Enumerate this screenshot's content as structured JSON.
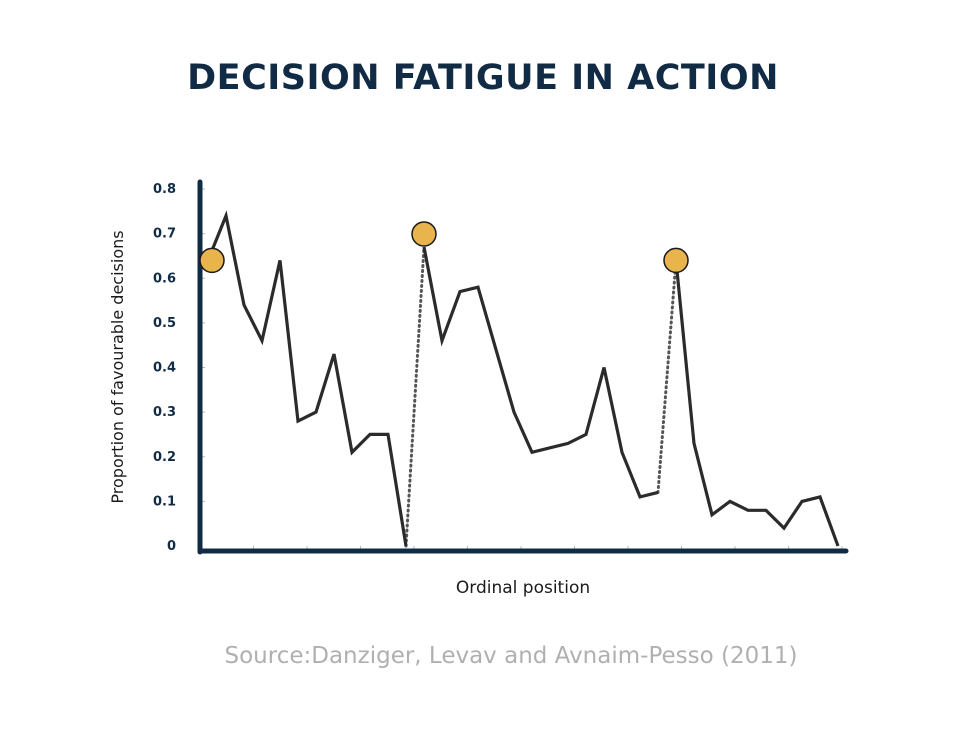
{
  "title": "DECISION FATIGUE IN ACTION",
  "source": "Source:Danziger, Levav and Avnaim-Pesso (2011)",
  "colors": {
    "title": "#112b45",
    "axis": "#112b45",
    "line": "#2b2b2b",
    "marker": "#e9b44c",
    "source": "#b0b0b0"
  },
  "chart_data": {
    "type": "line",
    "title": "DECISION FATIGUE IN ACTION",
    "xlabel": "Ordinal position",
    "ylabel": "Proportion of favourable decisions",
    "ylim": [
      0,
      0.8
    ],
    "yticks": [
      "0",
      "0.1",
      "0.2",
      "0.3",
      "0.4",
      "0.5",
      "0.6",
      "0.7",
      "0.8"
    ],
    "grid": false,
    "series": [
      {
        "segment": 1,
        "points": [
          [
            1,
            0.64
          ],
          [
            2,
            0.74
          ],
          [
            3,
            0.54
          ],
          [
            4,
            0.46
          ],
          [
            5,
            0.64
          ],
          [
            6,
            0.28
          ],
          [
            7,
            0.3
          ],
          [
            8,
            0.43
          ],
          [
            9,
            0.21
          ],
          [
            10,
            0.25
          ],
          [
            11,
            0.25
          ],
          [
            12,
            0.0
          ]
        ]
      },
      {
        "segment": 2,
        "points": [
          [
            13,
            0.67
          ],
          [
            14,
            0.46
          ],
          [
            15,
            0.57
          ],
          [
            16,
            0.58
          ],
          [
            17,
            0.44
          ],
          [
            18,
            0.3
          ],
          [
            19,
            0.21
          ],
          [
            20,
            0.22
          ],
          [
            21,
            0.23
          ],
          [
            22,
            0.25
          ],
          [
            23,
            0.4
          ],
          [
            24,
            0.21
          ],
          [
            25,
            0.11
          ],
          [
            26,
            0.12
          ]
        ]
      },
      {
        "segment": 3,
        "points": [
          [
            27,
            0.64
          ],
          [
            28,
            0.23
          ],
          [
            29,
            0.07
          ],
          [
            30,
            0.1
          ],
          [
            31,
            0.08
          ],
          [
            32,
            0.08
          ],
          [
            33,
            0.04
          ],
          [
            34,
            0.1
          ],
          [
            35,
            0.11
          ],
          [
            36,
            0.0
          ]
        ]
      }
    ],
    "breaks": [
      {
        "from": [
          12,
          0.0
        ],
        "to": [
          13,
          0.67
        ],
        "style": "dotted"
      },
      {
        "from": [
          26,
          0.12
        ],
        "to": [
          27,
          0.64
        ],
        "style": "dotted"
      }
    ],
    "markers": [
      [
        1,
        0.64
      ],
      [
        13,
        0.67
      ],
      [
        27,
        0.64
      ]
    ]
  }
}
